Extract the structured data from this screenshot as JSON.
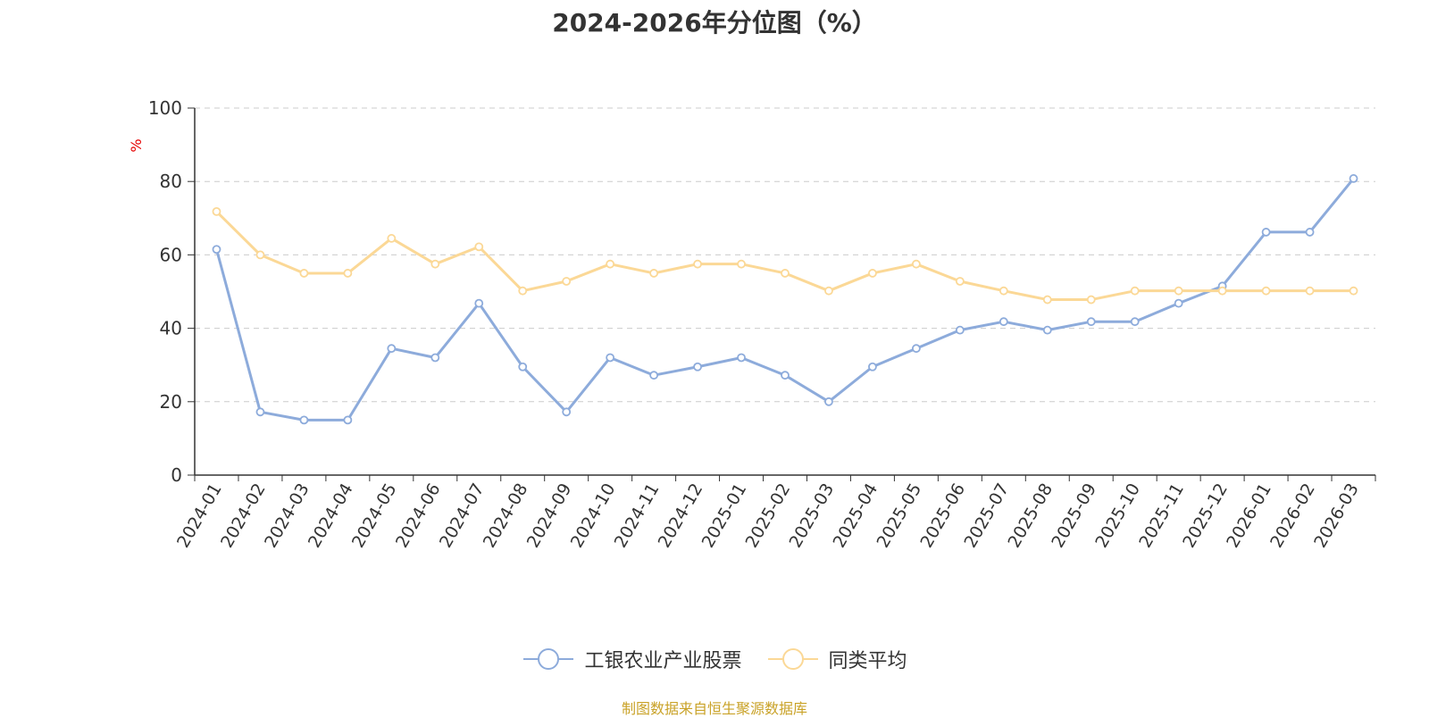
{
  "chart_data": {
    "type": "line",
    "title": "2024-2026年分位图（%）",
    "ylabel": "%",
    "xlabel": "",
    "ylim": [
      0,
      100
    ],
    "yticks": [
      0,
      20,
      40,
      60,
      80,
      100
    ],
    "grid": true,
    "legend_position": "bottom-center",
    "categories": [
      "2024-01",
      "2024-02",
      "2024-03",
      "2024-04",
      "2024-05",
      "2024-06",
      "2024-07",
      "2024-08",
      "2024-09",
      "2024-10",
      "2024-11",
      "2024-12",
      "2025-01",
      "2025-02",
      "2025-03",
      "2025-04",
      "2025-05",
      "2025-06",
      "2025-07",
      "2025-08",
      "2025-09",
      "2025-10",
      "2025-11",
      "2025-12",
      "2026-01",
      "2026-02",
      "2026-03"
    ],
    "series": [
      {
        "name": "工银农业产业股票",
        "color": "#8dabdb",
        "values": [
          61.5,
          17.2,
          15.0,
          15.0,
          34.5,
          32.0,
          46.8,
          29.5,
          17.2,
          32.0,
          27.2,
          29.5,
          32.0,
          27.2,
          20.0,
          29.5,
          34.5,
          39.5,
          41.8,
          39.5,
          41.8,
          41.8,
          46.8,
          51.5,
          66.2,
          66.2,
          80.8
        ]
      },
      {
        "name": "同类平均",
        "color": "#fbd896",
        "values": [
          71.8,
          60.0,
          55.0,
          55.0,
          64.5,
          57.5,
          62.2,
          50.2,
          52.8,
          57.5,
          55.0,
          57.5,
          57.5,
          55.0,
          50.2,
          55.0,
          57.5,
          52.8,
          50.2,
          47.8,
          47.8,
          50.2,
          50.2,
          50.2,
          50.2,
          50.2,
          50.2
        ]
      }
    ]
  },
  "source_note": "制图数据来自恒生聚源数据库"
}
